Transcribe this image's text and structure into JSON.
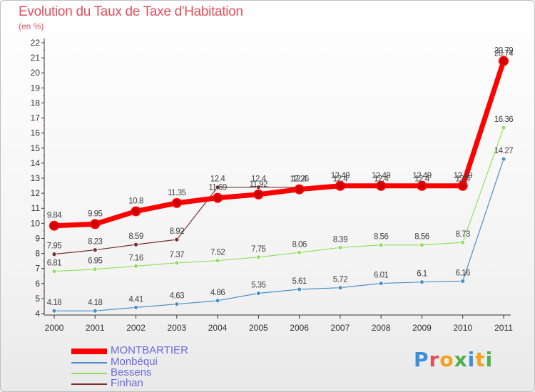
{
  "header": {
    "title": "Evolution du Taux de Taxe d'Habitation",
    "unit": "(en %)"
  },
  "brand": {
    "text": "Proxiti",
    "letter_colors": [
      "#3b8fd9",
      "#e0505c",
      "#f2a31b",
      "#4caf50",
      "#3b8fd9",
      "#f2a31b",
      "#4caf50"
    ]
  },
  "chart_data": {
    "type": "line",
    "title": "Evolution du Taux de Taxe d'Habitation",
    "ylabel": "(en %)",
    "xlabel": "",
    "categories": [
      "2000",
      "2001",
      "2002",
      "2003",
      "2004",
      "2005",
      "2006",
      "2007",
      "2008",
      "2009",
      "2010",
      "2011"
    ],
    "ylim": [
      4,
      22
    ],
    "yticks": [
      "4",
      "5",
      "6",
      "7",
      "8",
      "9",
      "10",
      "11",
      "12",
      "13",
      "14",
      "15",
      "16",
      "17",
      "18",
      "19",
      "20",
      "21",
      "22"
    ],
    "grid": false,
    "legend_position": "bottom-left",
    "series": [
      {
        "name": "MONTBARTIER",
        "color": "#ff0000",
        "values": [
          9.84,
          9.95,
          10.8,
          11.35,
          11.69,
          11.92,
          12.26,
          12.49,
          12.49,
          12.49,
          12.49,
          20.79
        ],
        "labels": [
          "9.84",
          "9.95",
          "10.8",
          "11.35",
          "11.69",
          "11.92",
          "12.26",
          "12.49",
          "12.49",
          "12.49",
          "12.49",
          "20.79"
        ]
      },
      {
        "name": "Monbéqui",
        "color": "#4a8fc9",
        "values": [
          4.18,
          4.18,
          4.41,
          4.63,
          4.86,
          5.35,
          5.61,
          5.72,
          6.01,
          6.1,
          6.16,
          14.27
        ],
        "labels": [
          "4.18",
          "4.18",
          "4.41",
          "4.63",
          "4.86",
          "5.35",
          "5.61",
          "5.72",
          "6.01",
          "6.1",
          "6.16",
          "14.27"
        ]
      },
      {
        "name": "Bessens",
        "color": "#90e060",
        "values": [
          6.81,
          6.95,
          7.16,
          7.37,
          7.52,
          7.75,
          8.06,
          8.39,
          8.56,
          8.56,
          8.73,
          16.36
        ],
        "labels": [
          "6.81",
          "6.95",
          "7.16",
          "7.37",
          "7.52",
          "7.75",
          "8.06",
          "8.39",
          "8.56",
          "8.56",
          "8.73",
          "16.36"
        ]
      },
      {
        "name": "Finhan",
        "color": "#7a2e2e",
        "values": [
          7.95,
          8.23,
          8.59,
          8.92,
          12.4,
          12.4,
          12.4,
          12.4,
          12.4,
          12.4,
          12.4,
          20.74
        ],
        "labels": [
          "7.95",
          "8.23",
          "8.59",
          "8.92",
          "12.4",
          "12.4",
          "12.4",
          "12.4",
          "12.4",
          "12.4",
          "12.4",
          "20.74"
        ]
      }
    ]
  }
}
